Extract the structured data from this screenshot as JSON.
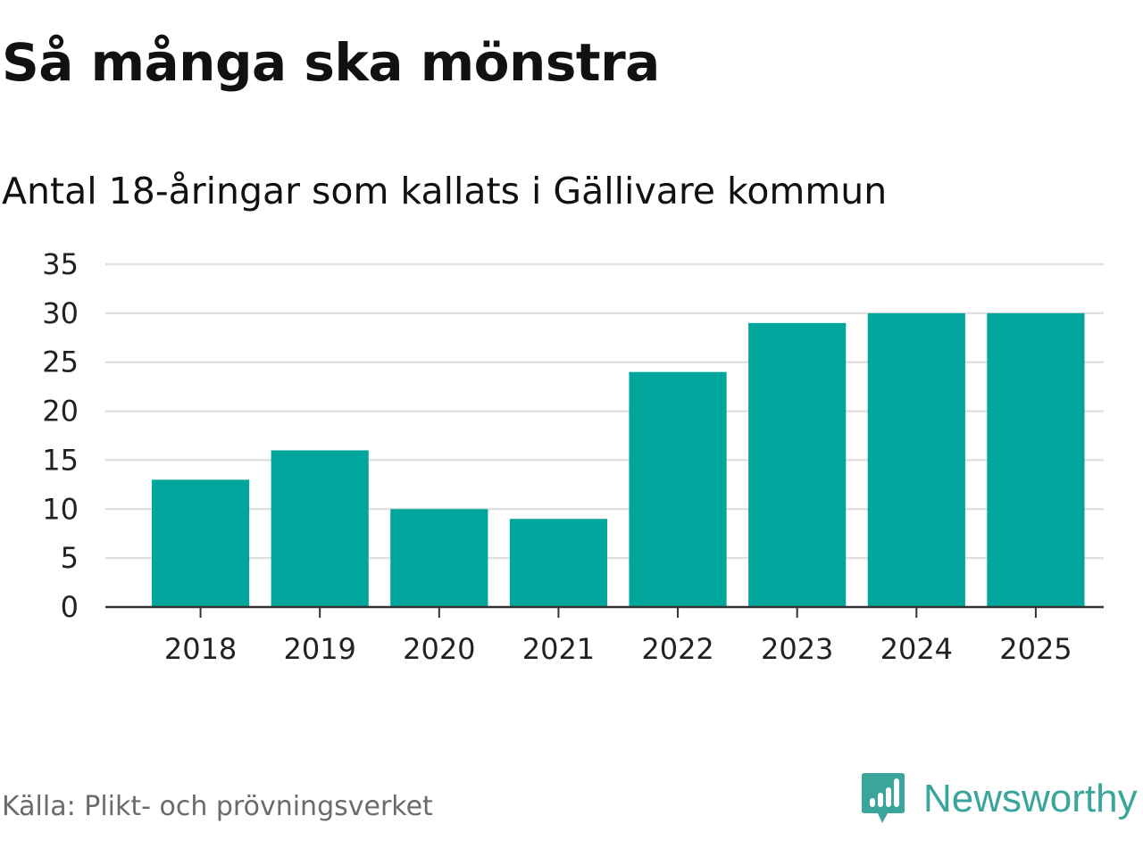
{
  "title": "Så många ska mönstra",
  "subtitle": "Antal 18-åringar som kallats i Gällivare kommun",
  "source": "Källa: Plikt- och prövningsverket",
  "brand": {
    "name": "Newsworthy",
    "icon": "newsworthy-logo-icon",
    "color": "#3aa59a"
  },
  "colors": {
    "bar": "#00a69b",
    "grid": "#e0e0e0",
    "axis": "#333333"
  },
  "chart_data": {
    "type": "bar",
    "categories": [
      "2018",
      "2019",
      "2020",
      "2021",
      "2022",
      "2023",
      "2024",
      "2025"
    ],
    "values": [
      13,
      16,
      10,
      9,
      24,
      29,
      30,
      30
    ],
    "ylim": [
      0,
      35
    ],
    "yticks": [
      0,
      5,
      10,
      15,
      20,
      25,
      30,
      35
    ],
    "grid": true,
    "legend": "none"
  }
}
